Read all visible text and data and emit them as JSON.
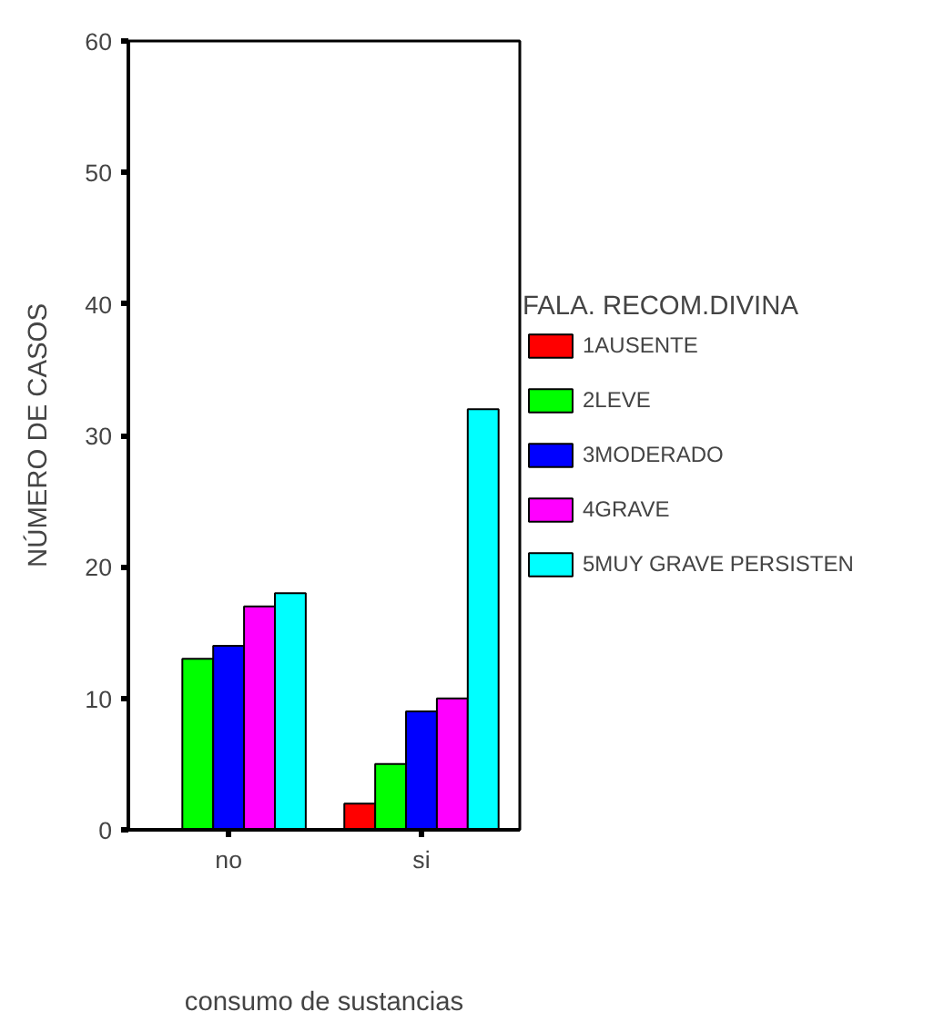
{
  "chart_data": {
    "type": "bar",
    "xlabel": "consumo de sustancias",
    "ylabel": "NÚMERO DE CASOS",
    "legend_title": "FALA. RECOM.DIVINA",
    "categories": [
      "no",
      "si"
    ],
    "series": [
      {
        "name": "1AUSENTE",
        "color": "#ff0000",
        "values": [
          null,
          2
        ]
      },
      {
        "name": "2LEVE",
        "color": "#00ff00",
        "values": [
          13,
          5
        ]
      },
      {
        "name": "3MODERADO",
        "color": "#0000ff",
        "values": [
          14,
          9
        ]
      },
      {
        "name": "4GRAVE",
        "color": "#ff00ff",
        "values": [
          17,
          10
        ]
      },
      {
        "name": "5MUY GRAVE PERSISTEN",
        "color": "#00ffff",
        "values": [
          18,
          32
        ]
      }
    ],
    "ylim": [
      0,
      60
    ],
    "yticks": [
      0,
      10,
      20,
      30,
      40,
      50,
      60
    ],
    "grid": false,
    "legend": "right"
  }
}
